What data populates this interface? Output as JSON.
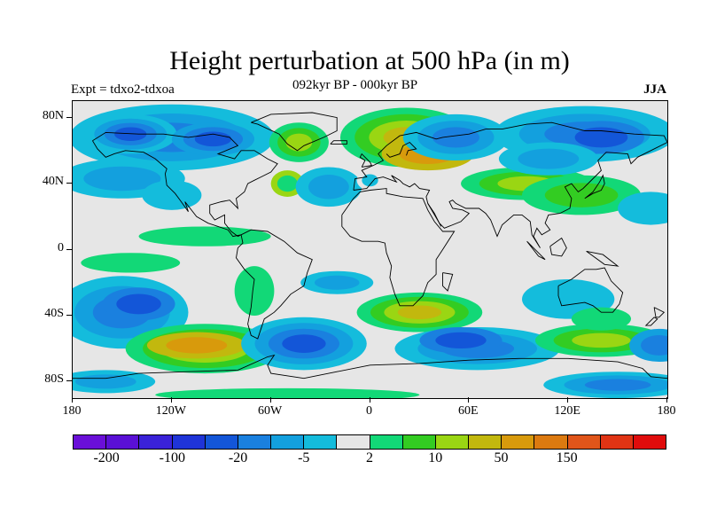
{
  "header": {
    "title": "Height perturbation at 500 hPa (in m)",
    "subtitle": "092kyr BP - 000kyr BP",
    "left_label": "Expt = tdxo2-tdxoa",
    "right_label": "JJA"
  },
  "map": {
    "projection": "cylindrical equidistant",
    "longitude_range": [
      -180,
      180
    ],
    "latitude_range": [
      -90,
      90
    ],
    "background_color": "#e6e6e6",
    "coastlines": true
  },
  "axes": {
    "y_ticks": [
      {
        "label": "80N",
        "lat": 80
      },
      {
        "label": "40N",
        "lat": 40
      },
      {
        "label": "0",
        "lat": 0
      },
      {
        "label": "40S",
        "lat": -40
      },
      {
        "label": "80S",
        "lat": -80
      }
    ],
    "x_ticks": [
      {
        "label": "180",
        "lon": -180
      },
      {
        "label": "120W",
        "lon": -120
      },
      {
        "label": "60W",
        "lon": -60
      },
      {
        "label": "0",
        "lon": 0
      },
      {
        "label": "60E",
        "lon": 60
      },
      {
        "label": "120E",
        "lon": 120
      },
      {
        "label": "180",
        "lon": 180
      }
    ]
  },
  "colorbar": {
    "colors": [
      "#6a0fd8",
      "#5a10d6",
      "#3a22d8",
      "#1f34d8",
      "#1356d8",
      "#1a80df",
      "#13a0de",
      "#14bcdc",
      "#e6e6e6",
      "#12d877",
      "#33cc22",
      "#9ad613",
      "#c2b80e",
      "#d89a0c",
      "#dc7a10",
      "#e0551a",
      "#e03414",
      "#e00c0c"
    ],
    "labels": [
      {
        "text": "-200",
        "boundary": 1
      },
      {
        "text": "-100",
        "boundary": 3
      },
      {
        "text": "-20",
        "boundary": 5
      },
      {
        "text": "-5",
        "boundary": 7
      },
      {
        "text": "2",
        "boundary": 9
      },
      {
        "text": "10",
        "boundary": 11
      },
      {
        "text": "50",
        "boundary": 13
      },
      {
        "text": "150",
        "boundary": 15
      }
    ]
  }
}
